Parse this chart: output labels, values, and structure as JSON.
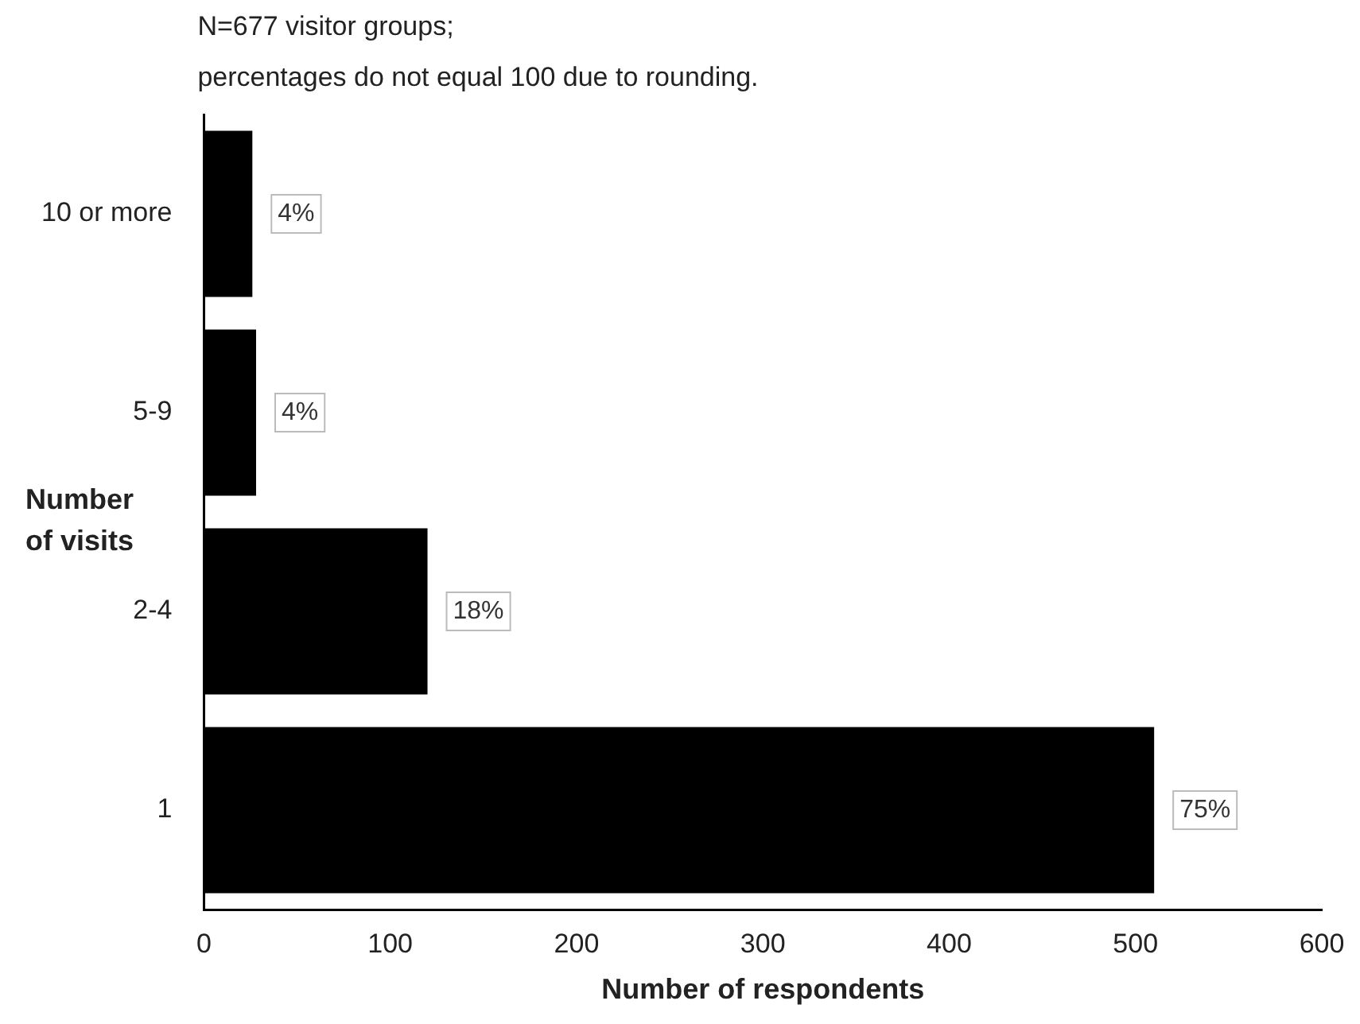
{
  "chart_data": {
    "type": "bar",
    "orientation": "horizontal",
    "subtitle": "N=677 visitor groups;",
    "title": "percentages do not equal 100 due to rounding.",
    "ylabel": "Number of visits",
    "xlabel": "Number of respondents",
    "categories": [
      "10 or more",
      "5-9",
      "2-4",
      "1"
    ],
    "values": [
      26,
      28,
      120,
      510
    ],
    "color": "#000000",
    "annotations": [
      {
        "text": "4%",
        "x": 26,
        "y": "10 or more"
      },
      {
        "text": "4%",
        "x": 28,
        "y": "5-9"
      },
      {
        "text": "18%",
        "x": 120,
        "y": "2-4"
      },
      {
        "text": "75%",
        "x": 510,
        "y": "1"
      }
    ],
    "xlim": [
      0,
      600
    ],
    "xticks": [
      0,
      100,
      200,
      300,
      400,
      500,
      600
    ],
    "grid": false,
    "legend": false
  }
}
